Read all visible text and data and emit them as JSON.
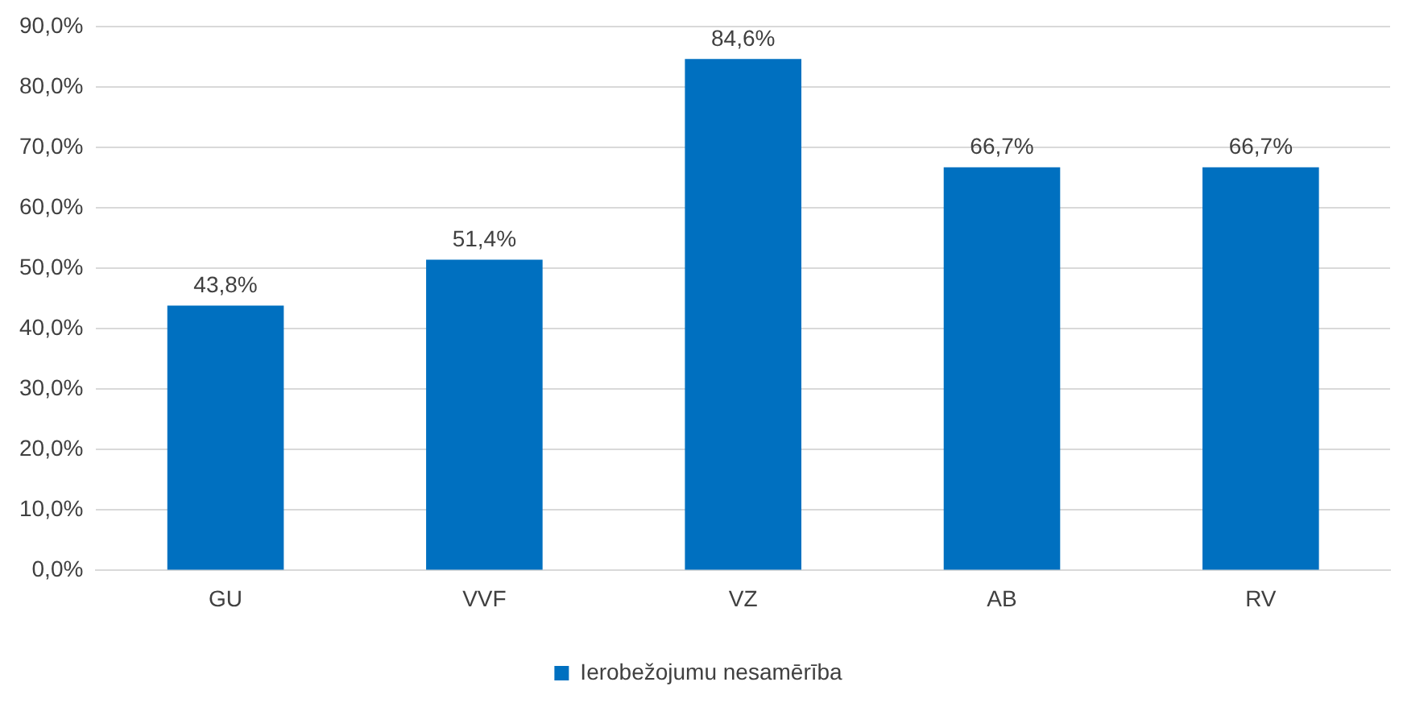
{
  "chart_data": {
    "type": "bar",
    "categories": [
      "GU",
      "VVF",
      "VZ",
      "AB",
      "RV"
    ],
    "series": [
      {
        "name": "Ierobežojumu nesamērība",
        "color": "#0070c0",
        "values": [
          43.8,
          51.4,
          84.6,
          66.7,
          66.7
        ],
        "value_labels": [
          "43,8%",
          "51,4%",
          "84,6%",
          "66,7%",
          "66,7%"
        ]
      }
    ],
    "ylim": [
      0,
      90
    ],
    "yticks": [
      {
        "value": 0,
        "label": "0,0%"
      },
      {
        "value": 10,
        "label": "10,0%"
      },
      {
        "value": 20,
        "label": "20,0%"
      },
      {
        "value": 30,
        "label": "30,0%"
      },
      {
        "value": 40,
        "label": "40,0%"
      },
      {
        "value": 50,
        "label": "50,0%"
      },
      {
        "value": 60,
        "label": "60,0%"
      },
      {
        "value": 70,
        "label": "70,0%"
      },
      {
        "value": 80,
        "label": "80,0%"
      },
      {
        "value": 90,
        "label": "90,0%"
      }
    ],
    "grid": "y",
    "legend": "bottom"
  }
}
